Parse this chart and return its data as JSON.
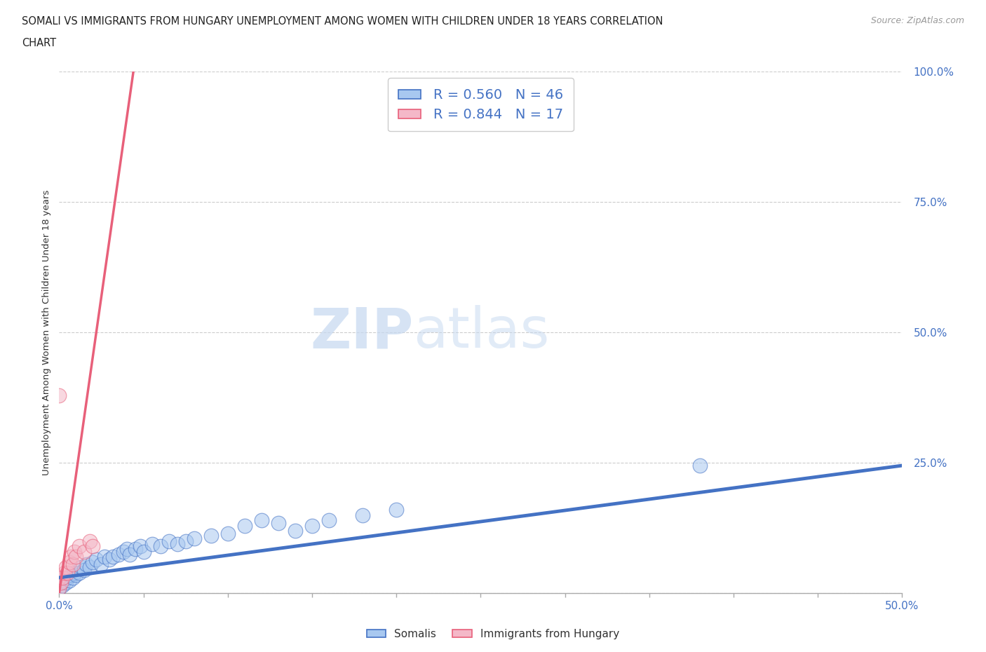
{
  "title_line1": "SOMALI VS IMMIGRANTS FROM HUNGARY UNEMPLOYMENT AMONG WOMEN WITH CHILDREN UNDER 18 YEARS CORRELATION",
  "title_line2": "CHART",
  "source": "Source: ZipAtlas.com",
  "ylabel": "Unemployment Among Women with Children Under 18 years",
  "xlim": [
    0.0,
    0.5
  ],
  "ylim": [
    0.0,
    1.0
  ],
  "yticks": [
    0.0,
    0.25,
    0.5,
    0.75,
    1.0
  ],
  "ytick_labels": [
    "",
    "25.0%",
    "50.0%",
    "75.0%",
    "100.0%"
  ],
  "somali_color": "#a8c8f0",
  "hungary_color": "#f4b8c8",
  "somali_line_color": "#4472C4",
  "hungary_line_color": "#e8607a",
  "R_somali": 0.56,
  "N_somali": 46,
  "R_hungary": 0.844,
  "N_hungary": 17,
  "legend_label_somali": "Somalis",
  "legend_label_hungary": "Immigrants from Hungary",
  "watermark_zip": "ZIP",
  "watermark_atlas": "atlas",
  "background_color": "#ffffff",
  "somali_points_x": [
    0.0,
    0.001,
    0.002,
    0.003,
    0.004,
    0.005,
    0.006,
    0.007,
    0.008,
    0.009,
    0.01,
    0.012,
    0.013,
    0.015,
    0.016,
    0.018,
    0.02,
    0.022,
    0.025,
    0.027,
    0.03,
    0.032,
    0.035,
    0.038,
    0.04,
    0.042,
    0.045,
    0.048,
    0.05,
    0.055,
    0.06,
    0.065,
    0.07,
    0.075,
    0.08,
    0.09,
    0.1,
    0.11,
    0.12,
    0.13,
    0.14,
    0.15,
    0.16,
    0.18,
    0.2,
    0.38
  ],
  "somali_points_y": [
    0.01,
    0.02,
    0.015,
    0.025,
    0.02,
    0.03,
    0.025,
    0.035,
    0.03,
    0.04,
    0.035,
    0.04,
    0.05,
    0.045,
    0.055,
    0.05,
    0.06,
    0.065,
    0.055,
    0.07,
    0.065,
    0.07,
    0.075,
    0.08,
    0.085,
    0.075,
    0.085,
    0.09,
    0.08,
    0.095,
    0.09,
    0.1,
    0.095,
    0.1,
    0.105,
    0.11,
    0.115,
    0.13,
    0.14,
    0.135,
    0.12,
    0.13,
    0.14,
    0.15,
    0.16,
    0.245
  ],
  "hungary_points_x": [
    0.0,
    0.0,
    0.0,
    0.001,
    0.002,
    0.003,
    0.004,
    0.005,
    0.006,
    0.007,
    0.008,
    0.009,
    0.01,
    0.012,
    0.015,
    0.018,
    0.02
  ],
  "hungary_points_y": [
    0.01,
    0.03,
    0.38,
    0.02,
    0.03,
    0.04,
    0.05,
    0.04,
    0.06,
    0.07,
    0.055,
    0.08,
    0.07,
    0.09,
    0.08,
    0.1,
    0.09
  ],
  "somali_trend_x": [
    0.0,
    0.5
  ],
  "somali_trend_y": [
    0.03,
    0.245
  ],
  "hungary_trend_x": [
    0.0,
    0.044
  ],
  "hungary_trend_y": [
    0.0,
    1.0
  ]
}
